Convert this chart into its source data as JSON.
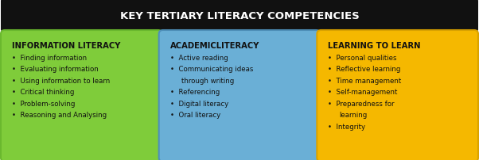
{
  "title": "KEY TERTIARY LITERACY COMPETENCIES",
  "title_bg": "#111111",
  "title_color": "#ffffff",
  "title_fontsize": 9.5,
  "columns": [
    {
      "heading": "INFORMATION LITERACY",
      "bg_color": "#7fcc3a",
      "border_color": "#6ab82e",
      "items": [
        [
          "Finding information"
        ],
        [
          "Evaluating information"
        ],
        [
          "Using information to learn"
        ],
        [
          "Critical thinking"
        ],
        [
          "Problem-solving"
        ],
        [
          "Reasoning and Analysing"
        ]
      ]
    },
    {
      "heading": "ACADEMICLITERACY",
      "bg_color": "#6aafd6",
      "border_color": "#4e8fb8",
      "items": [
        [
          "Active reading"
        ],
        [
          "Communicating ideas",
          "through writing"
        ],
        [
          "Referencing"
        ],
        [
          "Digital literacy"
        ],
        [
          "Oral literacy"
        ]
      ]
    },
    {
      "heading": "LEARNING TO LEARN",
      "bg_color": "#f5b800",
      "border_color": "#d9a200",
      "items": [
        [
          "Personal qualities"
        ],
        [
          "Reflective learning"
        ],
        [
          "Time management"
        ],
        [
          "Self-management"
        ],
        [
          "Preparedness for",
          "learning"
        ],
        [
          "Integrity"
        ]
      ]
    }
  ],
  "heading_fontsize": 7.2,
  "item_fontsize": 6.2,
  "text_color": "#111111",
  "outer_bg": "#ffffff",
  "fig_width": 6.02,
  "fig_height": 2.03
}
